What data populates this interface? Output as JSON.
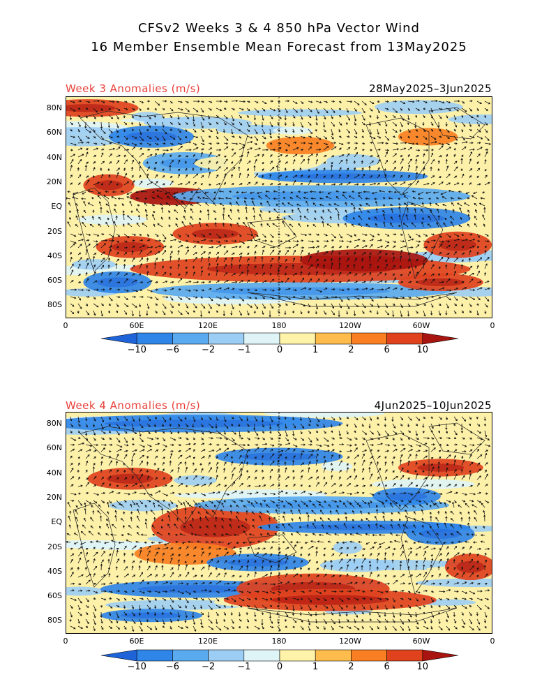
{
  "header": {
    "title_line1": "CFSv2 Weeks 3 & 4 850 hPa Vector Wind",
    "title_line2": "16 Member Ensemble Mean Forecast from 13May2025"
  },
  "panels": [
    {
      "id": "week3",
      "title": "Week 3 Anomalies (m/s)",
      "dates": "28May2025–3Jun2025"
    },
    {
      "id": "week4",
      "title": "Week 4 Anomalies (m/s)",
      "dates": "4Jun2025–10Jun2025"
    }
  ],
  "axes": {
    "lat_labels": [
      "80N",
      "60N",
      "40N",
      "20N",
      "EQ",
      "20S",
      "40S",
      "60S",
      "80S"
    ],
    "lon_labels": [
      "0",
      "60E",
      "120E",
      "180",
      "120W",
      "60W",
      "0"
    ]
  },
  "colorbar": {
    "labels": [
      "−10",
      "−6",
      "−2",
      "−1",
      "0",
      "1",
      "2",
      "6",
      "10"
    ],
    "colors": [
      "#1f63d9",
      "#2f86e8",
      "#5aaaf0",
      "#9ccef5",
      "#dff4f7",
      "#fff3a9",
      "#fdbc4c",
      "#f97f22",
      "#e0421e",
      "#a8140f"
    ]
  }
}
